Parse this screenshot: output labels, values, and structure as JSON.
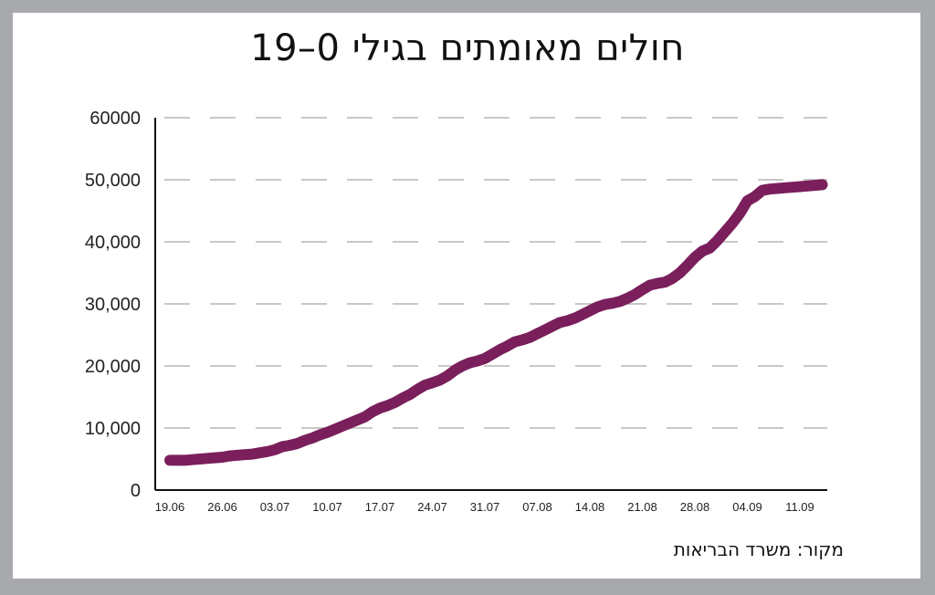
{
  "chart_data": {
    "type": "line",
    "title": "חולים מאומתים בגילי 0–19",
    "xlabel": "",
    "ylabel": "",
    "x_ticks": [
      "19.06",
      "26.06",
      "03.07",
      "10.07",
      "17.07",
      "24.07",
      "31.07",
      "07.08",
      "14.08",
      "21.08",
      "28.08",
      "04.09",
      "11.09"
    ],
    "y_ticks": [
      0,
      10000,
      20000,
      30000,
      40000,
      50000,
      60000
    ],
    "y_tick_labels": [
      "0",
      "10,000",
      "20,000",
      "30,000",
      "40,000",
      "50,000",
      "60000"
    ],
    "ylim": [
      0,
      60000
    ],
    "grid": true,
    "line_color": "#7a1f5c",
    "series": [
      {
        "x": [
          "19.06",
          "20.06",
          "21.06",
          "22.06",
          "23.06",
          "24.06",
          "25.06",
          "26.06",
          "27.06",
          "28.06",
          "29.06",
          "30.06",
          "01.07",
          "02.07",
          "03.07",
          "04.07",
          "05.07",
          "06.07",
          "07.07",
          "08.07",
          "09.07",
          "10.07",
          "11.07",
          "12.07",
          "13.07",
          "14.07",
          "15.07",
          "16.07",
          "17.07",
          "18.07",
          "19.07",
          "20.07",
          "21.07",
          "22.07",
          "23.07",
          "24.07",
          "25.07",
          "26.07",
          "27.07",
          "28.07",
          "29.07",
          "30.07",
          "31.07",
          "01.08",
          "02.08",
          "03.08",
          "04.08",
          "05.08",
          "06.08",
          "07.08",
          "08.08",
          "09.08",
          "10.08",
          "11.08",
          "12.08",
          "13.08",
          "14.08",
          "15.08",
          "16.08",
          "17.08",
          "18.08",
          "19.08",
          "20.08",
          "21.08",
          "22.08",
          "23.08",
          "24.08",
          "25.08",
          "26.08",
          "27.08",
          "28.08",
          "29.08",
          "30.08",
          "31.08",
          "01.09",
          "02.09",
          "03.09",
          "04.09",
          "05.09",
          "06.09",
          "07.09",
          "08.09",
          "09.09",
          "10.09",
          "11.09",
          "12.09",
          "13.09",
          "14.09"
        ],
        "values": [
          4800,
          4800,
          4800,
          4900,
          5000,
          5100,
          5200,
          5300,
          5500,
          5600,
          5700,
          5800,
          6000,
          6200,
          6500,
          7000,
          7200,
          7500,
          8000,
          8400,
          8900,
          9300,
          9800,
          10300,
          10800,
          11300,
          11800,
          12600,
          13200,
          13600,
          14100,
          14800,
          15400,
          16200,
          16900,
          17300,
          17700,
          18400,
          19300,
          20000,
          20500,
          20800,
          21200,
          21900,
          22600,
          23200,
          23900,
          24200,
          24600,
          25200,
          25800,
          26400,
          27000,
          27300,
          27700,
          28300,
          28900,
          29500,
          29900,
          30100,
          30400,
          30900,
          31500,
          32300,
          33000,
          33300,
          33500,
          34100,
          35000,
          36200,
          37500,
          38500,
          39000,
          40200,
          41600,
          43000,
          44600,
          46600,
          47300,
          48300,
          48500,
          48600,
          48700,
          48800,
          48900,
          49000,
          49100,
          49200
        ]
      }
    ]
  },
  "source": "מקור: משרד הבריאות"
}
